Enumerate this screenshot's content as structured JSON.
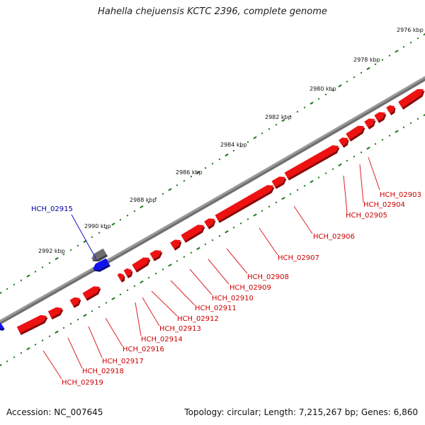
{
  "title": "Hahella chejuensis KCTC 2396, complete genome",
  "footer": {
    "accession": "Accession: NC_007645",
    "summary": "Topology: circular; Length: 7,215,267 bp; Genes: 6,860"
  },
  "colors": {
    "forward_gene": "#ee1111",
    "reverse_gene": "#1111ee",
    "other_feature": "#6d6d6d",
    "backbone": "#888888",
    "scale_tick": "#1a7a1a",
    "label_forward": "#cc0000",
    "label_reverse": "#0000aa"
  },
  "scale_labels": [
    "2976 kbp",
    "2978 kbp",
    "2980 kbp",
    "2982 kbp",
    "2984 kbp",
    "2986 kbp",
    "2988 kbp",
    "2990 kbp",
    "2992 kbp"
  ],
  "gene_labels": {
    "HCH_02915": "HCH_02915",
    "HCH_02903": "HCH_02903",
    "HCH_02904": "HCH_02904",
    "HCH_02905": "HCH_02905",
    "HCH_02906": "HCH_02906",
    "HCH_02907": "HCH_02907",
    "HCH_02908": "HCH_02908",
    "HCH_02909": "HCH_02909",
    "HCH_02910": "HCH_02910",
    "HCH_02911": "HCH_02911",
    "HCH_02912": "HCH_02912",
    "HCH_02913": "HCH_02913",
    "HCH_02914": "HCH_02914",
    "HCH_02916": "HCH_02916",
    "HCH_02917": "HCH_02917",
    "HCH_02918": "HCH_02918",
    "HCH_02919": "HCH_02919"
  }
}
